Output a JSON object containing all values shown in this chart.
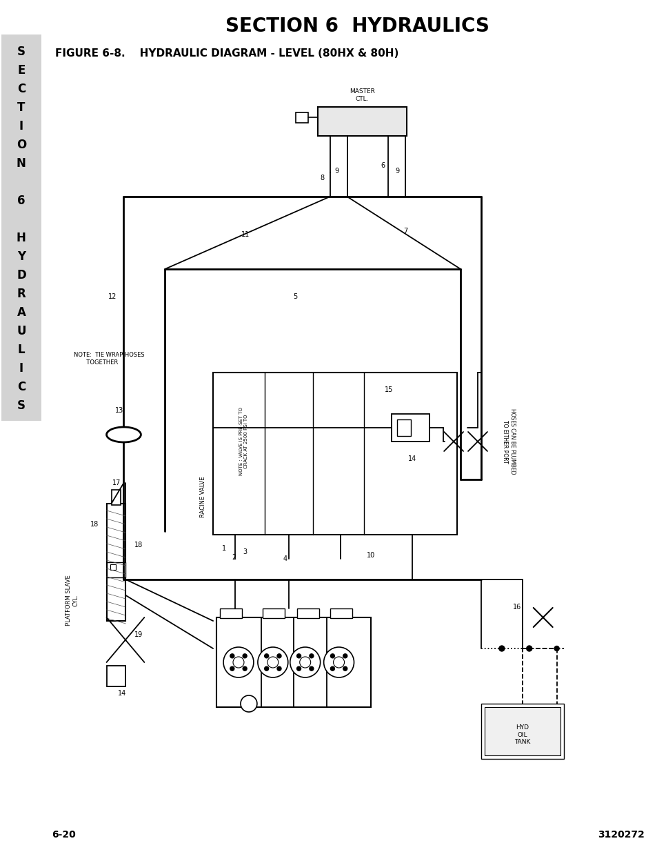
{
  "title": "SECTION 6  HYDRAULICS",
  "figure_label": "FIGURE 6-8.    HYDRAULIC DIAGRAM - LEVEL (80HX & 80H)",
  "page_left": "6-20",
  "page_right": "3120272",
  "side_tab_color": "#d3d3d3",
  "bg_color": "#ffffff",
  "title_fontsize": 20,
  "fig_label_fontsize": 11,
  "footer_fontsize": 10,
  "side_chars": [
    "S",
    "E",
    "C",
    "T",
    "I",
    "O",
    "N",
    "",
    "6",
    "",
    "H",
    "Y",
    "D",
    "R",
    "A",
    "U",
    "L",
    "I",
    "C",
    "S"
  ]
}
